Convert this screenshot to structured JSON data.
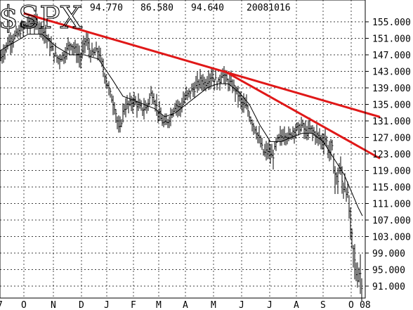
{
  "header": {
    "symbol": "$SPX",
    "v1": "94.770",
    "v2": "86.580",
    "v3": "94.640",
    "date": "20081016"
  },
  "chart_data": {
    "type": "ohlc",
    "title": "$SPX",
    "grid": true,
    "ylim": [
      89,
      158
    ],
    "yticks": [
      "155.000",
      "151.000",
      "147.000",
      "143.000",
      "139.000",
      "135.000",
      "131.000",
      "127.000",
      "123.000",
      "119.000",
      "115.000",
      "111.000",
      "107.000",
      "103.000",
      "99.000",
      "95.000",
      "91.000"
    ],
    "xticks": [
      "7",
      "O",
      "N",
      "D",
      "J",
      "F",
      "M",
      "A",
      "M",
      "J",
      "J",
      "A",
      "S",
      "O",
      "08"
    ],
    "close_path": [
      [
        0,
        146
      ],
      [
        12,
        150
      ],
      [
        25,
        152
      ],
      [
        35,
        154
      ],
      [
        50,
        155
      ],
      [
        62,
        153
      ],
      [
        72,
        149
      ],
      [
        82,
        146
      ],
      [
        92,
        147
      ],
      [
        100,
        150
      ],
      [
        108,
        148
      ],
      [
        115,
        146
      ],
      [
        122,
        151
      ],
      [
        130,
        147
      ],
      [
        140,
        148
      ],
      [
        148,
        143
      ],
      [
        156,
        138
      ],
      [
        164,
        134
      ],
      [
        170,
        128
      ],
      [
        176,
        134
      ],
      [
        184,
        135
      ],
      [
        190,
        136
      ],
      [
        200,
        134
      ],
      [
        208,
        134
      ],
      [
        216,
        138
      ],
      [
        222,
        135
      ],
      [
        230,
        131
      ],
      [
        236,
        130
      ],
      [
        242,
        132
      ],
      [
        250,
        135
      ],
      [
        256,
        134
      ],
      [
        262,
        136
      ],
      [
        270,
        138
      ],
      [
        278,
        139
      ],
      [
        286,
        141
      ],
      [
        292,
        140
      ],
      [
        300,
        142
      ],
      [
        306,
        141
      ],
      [
        312,
        140
      ],
      [
        316,
        143
      ],
      [
        322,
        141
      ],
      [
        328,
        140
      ],
      [
        334,
        139
      ],
      [
        340,
        137
      ],
      [
        346,
        135
      ],
      [
        352,
        134
      ],
      [
        358,
        131
      ],
      [
        364,
        129
      ],
      [
        370,
        126
      ],
      [
        376,
        123
      ],
      [
        382,
        124
      ],
      [
        388,
        122
      ],
      [
        394,
        126
      ],
      [
        400,
        127
      ],
      [
        406,
        128
      ],
      [
        412,
        127
      ],
      [
        418,
        129
      ],
      [
        424,
        129
      ],
      [
        430,
        130
      ],
      [
        436,
        128
      ],
      [
        442,
        129
      ],
      [
        448,
        128
      ],
      [
        454,
        127
      ],
      [
        460,
        126
      ],
      [
        464,
        127
      ],
      [
        468,
        123
      ],
      [
        472,
        125
      ],
      [
        476,
        119
      ],
      [
        480,
        116
      ],
      [
        484,
        120
      ],
      [
        488,
        115
      ],
      [
        492,
        116
      ],
      [
        496,
        111
      ],
      [
        500,
        104
      ],
      [
        504,
        98
      ],
      [
        508,
        93
      ],
      [
        512,
        95
      ],
      [
        516,
        91
      ]
    ],
    "ma_path": [
      [
        0,
        148
      ],
      [
        20,
        150
      ],
      [
        40,
        152
      ],
      [
        60,
        152
      ],
      [
        80,
        149
      ],
      [
        100,
        147
      ],
      [
        120,
        147
      ],
      [
        140,
        146
      ],
      [
        160,
        141
      ],
      [
        175,
        137
      ],
      [
        190,
        136
      ],
      [
        205,
        135
      ],
      [
        220,
        134
      ],
      [
        235,
        132
      ],
      [
        250,
        133
      ],
      [
        265,
        135
      ],
      [
        280,
        137
      ],
      [
        295,
        139
      ],
      [
        310,
        140
      ],
      [
        325,
        140
      ],
      [
        340,
        138
      ],
      [
        355,
        135
      ],
      [
        370,
        130
      ],
      [
        385,
        126
      ],
      [
        400,
        126
      ],
      [
        415,
        127
      ],
      [
        430,
        128
      ],
      [
        445,
        128
      ],
      [
        460,
        126
      ],
      [
        475,
        122
      ],
      [
        490,
        118
      ],
      [
        500,
        114
      ],
      [
        510,
        110
      ],
      [
        516,
        108
      ]
    ],
    "trendlines": [
      {
        "from": [
          35,
          157
        ],
        "to": [
          540,
          132
        ]
      },
      {
        "from": [
          320,
          143
        ],
        "to": [
          540,
          122
        ]
      }
    ]
  },
  "colors": {
    "background": "#ffffff",
    "price_bars": "#000000",
    "moving_average": "#000000",
    "trendline": "#e01818",
    "grid": "#000000"
  }
}
